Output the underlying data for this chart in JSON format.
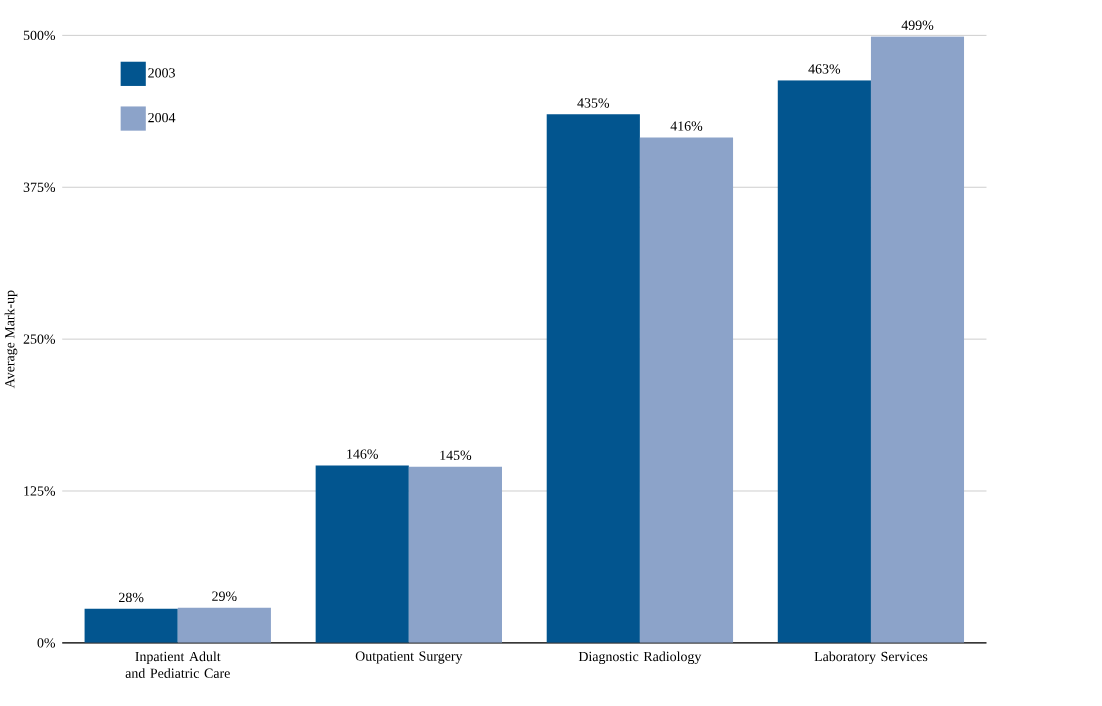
{
  "chart_data": {
    "type": "bar",
    "ylabel": "Average Mark-up",
    "categories": [
      "Inpatient Adult and Pediatric Care",
      "Outpatient Surgery",
      "Diagnostic Radiology",
      "Laboratory Services"
    ],
    "series": [
      {
        "name": "2003",
        "color": "#02558f",
        "values": [
          28,
          146,
          435,
          463
        ],
        "value_labels": [
          "28%",
          "146%",
          "435%",
          "463%"
        ]
      },
      {
        "name": "2004",
        "color": "#8ca3c9",
        "values": [
          29,
          145,
          416,
          499
        ],
        "value_labels": [
          "29%",
          "145%",
          "416%",
          "499%"
        ]
      }
    ],
    "ylim": [
      0,
      500
    ],
    "yticks": [
      {
        "value": 0,
        "label": "0%"
      },
      {
        "value": 125,
        "label": "125%"
      },
      {
        "value": 250,
        "label": "250%"
      },
      {
        "value": 375,
        "label": "375%"
      },
      {
        "value": 500,
        "label": "500%"
      }
    ],
    "grid": "y",
    "legend": "top left"
  }
}
